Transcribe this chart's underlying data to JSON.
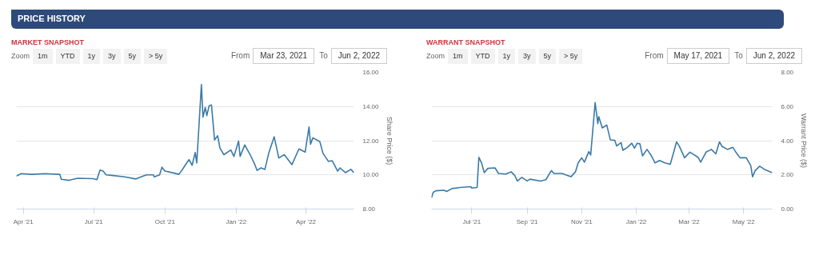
{
  "chart_data": [
    {
      "type": "other",
      "title": "PRICE HISTORY"
    },
    {
      "type": "line",
      "title": "MARKET SNAPSHOT",
      "ylabel": "Share Price ($)",
      "grid": "y",
      "line_style": "solid",
      "annotations": [
        "Zoom",
        "1m",
        "YTD",
        "1y",
        "3y",
        "5y",
        "> 5y",
        "From",
        "Mar 23, 2021",
        "To",
        "Jun 2, 2022"
      ],
      "xlim": [
        "2021-03-23",
        "2022-06-02"
      ],
      "ylim": [
        8,
        16
      ],
      "xticks": [
        {
          "value": "2021-04-01",
          "label": "Apr '21"
        },
        {
          "value": "2021-07-01",
          "label": "Jul '21"
        },
        {
          "value": "2021-10-01",
          "label": "Oct '21"
        },
        {
          "value": "2022-01-01",
          "label": "Jan '22"
        },
        {
          "value": "2022-04-01",
          "label": "Apr '22"
        }
      ],
      "yticks": [
        {
          "value": 8,
          "label": "8.00"
        },
        {
          "value": 10,
          "label": "10.00"
        },
        {
          "value": 12,
          "label": "12.00"
        },
        {
          "value": 14,
          "label": "14.00"
        },
        {
          "value": 16,
          "label": "16.00"
        }
      ],
      "series": [
        {
          "color": "#3b7aa6",
          "x": [
            "2021-03-23",
            "2021-03-29",
            "2021-04-12",
            "2021-04-29",
            "2021-05-18",
            "2021-05-20",
            "2021-05-30",
            "2021-06-10",
            "2021-06-30",
            "2021-07-05",
            "2021-07-09",
            "2021-07-13",
            "2021-07-17",
            "2021-07-24",
            "2021-08-10",
            "2021-08-24",
            "2021-08-31",
            "2021-09-07",
            "2021-09-16",
            "2021-09-17",
            "2021-09-24",
            "2021-09-27",
            "2021-10-01",
            "2021-10-12",
            "2021-10-19",
            "2021-10-24",
            "2021-10-29",
            "2021-11-01",
            "2021-11-05",
            "2021-11-09",
            "2021-11-11",
            "2021-11-17",
            "2021-11-19",
            "2021-11-22",
            "2021-11-24",
            "2021-11-27",
            "2021-11-30",
            "2021-12-04",
            "2021-12-08",
            "2021-12-11",
            "2021-12-16",
            "2021-12-25",
            "2021-12-29",
            "2022-01-04",
            "2022-01-06",
            "2022-01-12",
            "2022-01-19",
            "2022-01-25",
            "2022-01-28",
            "2022-02-02",
            "2022-02-07",
            "2022-02-12",
            "2022-02-19",
            "2022-02-25",
            "2022-03-04",
            "2022-03-14",
            "2022-03-23",
            "2022-03-31",
            "2022-04-05",
            "2022-04-07",
            "2022-04-10",
            "2022-04-19",
            "2022-04-23",
            "2022-04-30",
            "2022-05-05",
            "2022-05-12",
            "2022-05-15",
            "2022-05-22",
            "2022-05-29",
            "2022-06-02"
          ],
          "values": [
            9.93,
            10.07,
            10.03,
            10.07,
            10.03,
            9.74,
            9.68,
            9.8,
            9.78,
            9.72,
            10.28,
            10.22,
            10.0,
            9.97,
            9.88,
            9.76,
            9.88,
            10.0,
            10.0,
            9.88,
            10.0,
            10.45,
            10.22,
            10.11,
            10.03,
            10.35,
            10.7,
            10.89,
            10.56,
            11.31,
            10.7,
            15.29,
            13.38,
            13.95,
            13.47,
            14.05,
            14.09,
            12.04,
            12.29,
            11.56,
            11.18,
            11.46,
            11.08,
            11.98,
            11.08,
            11.75,
            11.18,
            10.6,
            10.26,
            10.41,
            10.32,
            11.27,
            12.23,
            10.99,
            11.18,
            10.6,
            11.52,
            11.33,
            12.8,
            11.79,
            12.17,
            11.94,
            11.27,
            10.79,
            10.83,
            10.22,
            10.41,
            10.13,
            10.32,
            10.13
          ]
        }
      ]
    },
    {
      "type": "line",
      "title": "WARRANT SNAPSHOT",
      "ylabel": "Warrant Price ($)",
      "grid": "y",
      "line_style": "solid",
      "annotations": [
        "Zoom",
        "1m",
        "YTD",
        "1y",
        "3y",
        "5y",
        "> 5y",
        "From",
        "May 17, 2021",
        "To",
        "Jun 2, 2022"
      ],
      "xlim": [
        "2021-05-17",
        "2022-06-02"
      ],
      "ylim": [
        0,
        8
      ],
      "xticks": [
        {
          "value": "2021-07-01",
          "label": "Jul '21"
        },
        {
          "value": "2021-09-01",
          "label": "Sep '21"
        },
        {
          "value": "2021-11-01",
          "label": "Nov '21"
        },
        {
          "value": "2022-01-01",
          "label": "Jan '22"
        },
        {
          "value": "2022-03-01",
          "label": "Mar '22"
        },
        {
          "value": "2022-05-01",
          "label": "May '22"
        }
      ],
      "yticks": [
        {
          "value": 0,
          "label": "0.00"
        },
        {
          "value": 2,
          "label": "2.00"
        },
        {
          "value": 4,
          "label": "4.00"
        },
        {
          "value": 6,
          "label": "6.00"
        },
        {
          "value": 8,
          "label": "8.00"
        }
      ],
      "series": [
        {
          "color": "#3b7aa6",
          "x": [
            "2021-05-17",
            "2021-05-19",
            "2021-05-22",
            "2021-05-31",
            "2021-06-03",
            "2021-06-09",
            "2021-06-18",
            "2021-06-30",
            "2021-07-01",
            "2021-07-07",
            "2021-07-09",
            "2021-07-12",
            "2021-07-15",
            "2021-07-19",
            "2021-07-27",
            "2021-07-31",
            "2021-08-08",
            "2021-08-14",
            "2021-08-18",
            "2021-08-21",
            "2021-08-26",
            "2021-09-01",
            "2021-09-04",
            "2021-09-16",
            "2021-09-22",
            "2021-09-28",
            "2021-10-01",
            "2021-10-10",
            "2021-10-16",
            "2021-10-20",
            "2021-10-25",
            "2021-10-28",
            "2021-11-01",
            "2021-11-04",
            "2021-11-09",
            "2021-11-11",
            "2021-11-16",
            "2021-11-19",
            "2021-11-20",
            "2021-11-24",
            "2021-11-29",
            "2021-12-03",
            "2021-12-08",
            "2021-12-10",
            "2021-12-15",
            "2021-12-17",
            "2021-12-22",
            "2021-12-27",
            "2021-12-30",
            "2022-01-02",
            "2022-01-05",
            "2022-01-08",
            "2022-01-13",
            "2022-01-18",
            "2022-01-22",
            "2022-01-27",
            "2022-02-02",
            "2022-02-08",
            "2022-02-12",
            "2022-02-15",
            "2022-02-18",
            "2022-02-24",
            "2022-03-02",
            "2022-03-11",
            "2022-03-14",
            "2022-03-20",
            "2022-03-26",
            "2022-03-31",
            "2022-04-04",
            "2022-04-07",
            "2022-04-13",
            "2022-04-19",
            "2022-04-22",
            "2022-04-27",
            "2022-05-04",
            "2022-05-09",
            "2022-05-11",
            "2022-05-14",
            "2022-05-19",
            "2022-05-25",
            "2022-06-02"
          ],
          "values": [
            0.66,
            0.98,
            1.07,
            1.1,
            1.03,
            1.2,
            1.26,
            1.31,
            1.23,
            1.26,
            3.03,
            2.7,
            2.13,
            2.38,
            2.41,
            2.08,
            2.05,
            2.18,
            1.97,
            1.64,
            1.85,
            1.64,
            1.75,
            1.64,
            1.72,
            2.25,
            2.08,
            2.08,
            1.97,
            1.89,
            2.18,
            2.7,
            3.0,
            2.74,
            3.36,
            3.16,
            6.23,
            5.0,
            5.41,
            4.75,
            4.92,
            4.05,
            4.02,
            3.69,
            3.89,
            3.44,
            3.61,
            3.85,
            3.56,
            3.85,
            3.82,
            3.11,
            3.49,
            3.11,
            2.7,
            2.84,
            2.7,
            2.62,
            3.36,
            3.93,
            3.69,
            3.0,
            3.33,
            3.03,
            2.74,
            3.33,
            3.49,
            3.23,
            3.93,
            3.66,
            3.49,
            3.61,
            3.36,
            3.0,
            3.0,
            2.54,
            1.89,
            2.25,
            2.51,
            2.3,
            2.13
          ]
        }
      ]
    }
  ]
}
